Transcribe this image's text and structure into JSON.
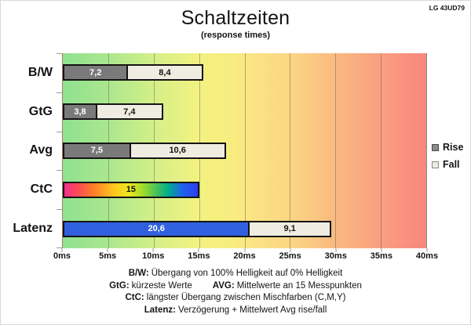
{
  "header": {
    "device": "LG 43UD79"
  },
  "chart_data": {
    "type": "bar",
    "orientation": "horizontal-stacked",
    "title": "Schaltzeiten",
    "subtitle": "(response times)",
    "unit": "ms",
    "xlim": [
      0,
      40
    ],
    "x_ticks": [
      "0ms",
      "5ms",
      "10ms",
      "15ms",
      "20ms",
      "25ms",
      "30ms",
      "35ms",
      "40ms"
    ],
    "categories": [
      "B/W",
      "GtG",
      "Avg",
      "CtC",
      "Latenz"
    ],
    "rows": [
      {
        "label": "B/W",
        "segments": [
          {
            "type": "rise",
            "value": 7.2,
            "display": "7,2"
          },
          {
            "type": "fall",
            "value": 8.4,
            "display": "8,4"
          }
        ]
      },
      {
        "label": "GtG",
        "segments": [
          {
            "type": "rise",
            "value": 3.8,
            "display": "3,8"
          },
          {
            "type": "fall",
            "value": 7.4,
            "display": "7,4"
          }
        ]
      },
      {
        "label": "Avg",
        "segments": [
          {
            "type": "rise",
            "value": 7.5,
            "display": "7,5"
          },
          {
            "type": "fall",
            "value": 10.6,
            "display": "10,6"
          }
        ]
      },
      {
        "label": "CtC",
        "segments": [
          {
            "type": "rainbow",
            "value": 15,
            "display": "15"
          }
        ]
      },
      {
        "label": "Latenz",
        "segments": [
          {
            "type": "latency",
            "value": 20.6,
            "display": "20,6"
          },
          {
            "type": "fall",
            "value": 9.1,
            "display": "9,1"
          }
        ]
      }
    ],
    "legend": [
      {
        "label": "Rise",
        "type": "rise"
      },
      {
        "label": "Fall",
        "type": "fall"
      }
    ],
    "colors": {
      "rise": "#7a7a7a",
      "fall": "#efece1",
      "latency": "#3060dd",
      "bar_border": "#141414",
      "background_left": "#8fe190",
      "background_mid": "#f9ec80",
      "background_right": "#f8867e"
    }
  },
  "footer": {
    "lines": [
      {
        "label": "B/W:",
        "text": "Übergang von 100% Helligkeit auf 0% Helligkeit"
      },
      {
        "label": "GtG:",
        "text": "kürzeste Werte",
        "label2": "AVG:",
        "text2": "Mittelwerte an 15 Messpunkten"
      },
      {
        "label": "CtC:",
        "text": "längster Übergang zwischen Mischfarben (C,M,Y)"
      },
      {
        "label": "Latenz:",
        "text": "Verzögerung + Mittelwert Avg rise/fall"
      }
    ]
  }
}
